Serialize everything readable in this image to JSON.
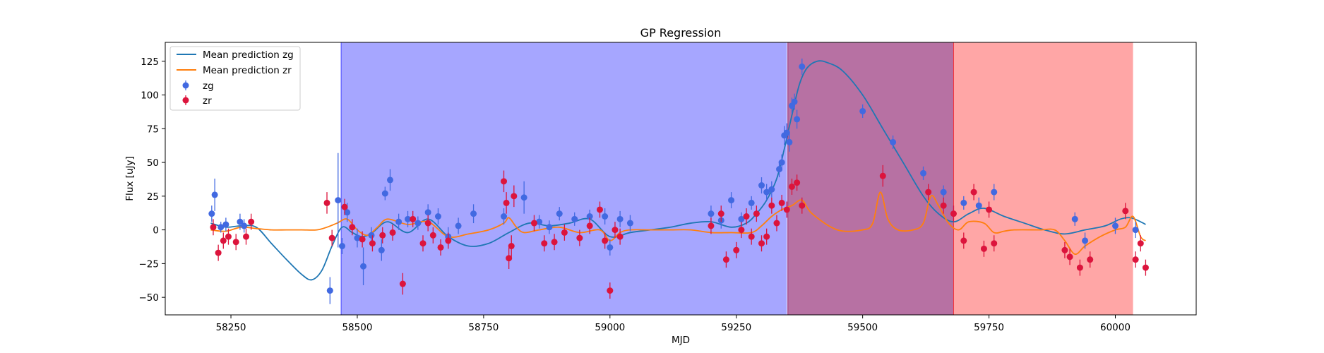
{
  "chart_data": {
    "type": "scatter",
    "title": "GP Regression",
    "xlabel": "MJD",
    "ylabel": "Flux [uJy]",
    "xlim": [
      58120,
      60160
    ],
    "ylim": [
      -63,
      139
    ],
    "xticks": [
      58250,
      58500,
      58750,
      59000,
      59250,
      59500,
      59750,
      60000
    ],
    "yticks": [
      -50,
      -25,
      0,
      25,
      50,
      75,
      100,
      125
    ],
    "grid": false,
    "legend_position": "upper-left",
    "legend": [
      {
        "label": "Mean prediction zg",
        "kind": "line",
        "color": "#1f77b4"
      },
      {
        "label": "Mean prediction zr",
        "kind": "line",
        "color": "#ff7f0e"
      },
      {
        "label": "zg",
        "kind": "marker",
        "color": "#4169e1"
      },
      {
        "label": "zr",
        "kind": "marker",
        "color": "#dc143c"
      }
    ],
    "spans": [
      {
        "x0": 58468,
        "x1": 59350,
        "color": "#0000ff",
        "alpha": 0.35
      },
      {
        "x0": 59352,
        "x1": 59680,
        "color": "#8b1a6b",
        "alpha": 0.62
      },
      {
        "x0": 59680,
        "x1": 60035,
        "color": "#ff0000",
        "alpha": 0.35
      }
    ],
    "series": [
      {
        "name": "Mean prediction zg",
        "kind": "line",
        "color": "#1f77b4",
        "x": [
          58210,
          58240,
          58270,
          58300,
          58330,
          58360,
          58390,
          58410,
          58430,
          58450,
          58470,
          58490,
          58510,
          58530,
          58560,
          58600,
          58640,
          58680,
          58720,
          58760,
          58800,
          58840,
          58880,
          58920,
          58960,
          59000,
          59040,
          59080,
          59120,
          59160,
          59200,
          59240,
          59270,
          59290,
          59310,
          59330,
          59345,
          59360,
          59375,
          59390,
          59410,
          59430,
          59460,
          59500,
          59540,
          59580,
          59620,
          59650,
          59680,
          59710,
          59740,
          59780,
          59820,
          59860,
          59900,
          59940,
          59980,
          60010,
          60030,
          60050,
          60060
        ],
        "y": [
          5,
          2,
          3,
          2,
          -10,
          -22,
          -33,
          -37,
          -30,
          -12,
          2,
          -2,
          -5,
          -2,
          6,
          -2,
          8,
          -5,
          -12,
          -10,
          -2,
          5,
          3,
          5,
          8,
          -5,
          -2,
          0,
          2,
          5,
          6,
          2,
          5,
          12,
          22,
          38,
          60,
          85,
          108,
          120,
          125,
          124,
          118,
          100,
          75,
          50,
          25,
          12,
          6,
          12,
          16,
          10,
          5,
          0,
          -3,
          0,
          3,
          8,
          9,
          6,
          4
        ]
      },
      {
        "name": "Mean prediction zr",
        "kind": "line",
        "color": "#ff7f0e",
        "x": [
          58210,
          58240,
          58270,
          58300,
          58330,
          58360,
          58390,
          58420,
          58440,
          58460,
          58480,
          58500,
          58520,
          58540,
          58560,
          58600,
          58640,
          58680,
          58720,
          58760,
          58790,
          58800,
          58815,
          58830,
          58860,
          58900,
          58940,
          58980,
          59000,
          59020,
          59040,
          59080,
          59120,
          59160,
          59200,
          59240,
          59280,
          59300,
          59320,
          59340,
          59360,
          59380,
          59400,
          59450,
          59500,
          59520,
          59535,
          59550,
          59570,
          59600,
          59620,
          59635,
          59650,
          59670,
          59690,
          59710,
          59740,
          59760,
          59780,
          59800,
          59850,
          59880,
          59900,
          59920,
          59940,
          59970,
          60000,
          60020,
          60035,
          60050,
          60060
        ],
        "y": [
          0,
          -1,
          2,
          1,
          0,
          0,
          0,
          0,
          2,
          5,
          8,
          0,
          -4,
          2,
          8,
          4,
          6,
          -5,
          -3,
          0,
          5,
          9,
          2,
          -2,
          0,
          2,
          -2,
          0,
          -8,
          -2,
          0,
          0,
          0,
          0,
          -2,
          -2,
          -2,
          3,
          10,
          15,
          18,
          22,
          12,
          0,
          0,
          5,
          28,
          8,
          0,
          0,
          5,
          25,
          18,
          5,
          0,
          6,
          5,
          -2,
          -1,
          0,
          0,
          0,
          -8,
          -18,
          -12,
          -5,
          0,
          2,
          10,
          -5,
          -8
        ]
      },
      {
        "name": "zg",
        "kind": "errorbar",
        "color": "#4169e1",
        "x": [
          58212,
          58218,
          58230,
          58240,
          58268,
          58276,
          58446,
          58462,
          58470,
          58480,
          58500,
          58512,
          58528,
          58548,
          58555,
          58565,
          58582,
          58600,
          58620,
          58640,
          58660,
          58680,
          58700,
          58730,
          58790,
          58830,
          58860,
          58880,
          58900,
          58930,
          58960,
          58990,
          59000,
          59020,
          59040,
          59200,
          59220,
          59240,
          59260,
          59280,
          59300,
          59310,
          59320,
          59335,
          59340,
          59345,
          59350,
          59355,
          59360,
          59365,
          59370,
          59380,
          59500,
          59560,
          59620,
          59660,
          59700,
          59730,
          59760,
          59920,
          59940,
          60000,
          60040
        ],
        "y": [
          12,
          26,
          2,
          4,
          6,
          3,
          -45,
          22,
          -12,
          13,
          -6,
          -27,
          -4,
          -15,
          27,
          37,
          6,
          8,
          5,
          13,
          10,
          -5,
          3,
          12,
          10,
          24,
          6,
          2,
          12,
          8,
          10,
          10,
          -13,
          8,
          5,
          12,
          7,
          22,
          8,
          20,
          33,
          28,
          30,
          45,
          50,
          70,
          72,
          65,
          92,
          95,
          82,
          121,
          88,
          65,
          42,
          28,
          20,
          18,
          28,
          8,
          -8,
          3,
          0
        ],
        "err": [
          6,
          12,
          4,
          5,
          6,
          5,
          10,
          35,
          6,
          7,
          7,
          14,
          6,
          8,
          5,
          8,
          6,
          6,
          5,
          6,
          6,
          7,
          6,
          7,
          6,
          12,
          5,
          5,
          5,
          5,
          5,
          6,
          6,
          6,
          6,
          6,
          6,
          6,
          5,
          5,
          6,
          6,
          6,
          6,
          6,
          7,
          7,
          7,
          6,
          6,
          7,
          6,
          5,
          5,
          5,
          5,
          5,
          6,
          6,
          5,
          6,
          6,
          6
        ]
      },
      {
        "name": "zr",
        "kind": "errorbar",
        "color": "#dc143c",
        "x": [
          58215,
          58225,
          58235,
          58245,
          58260,
          58280,
          58290,
          58440,
          58450,
          58475,
          58490,
          58510,
          58530,
          58550,
          58570,
          58590,
          58610,
          58630,
          58640,
          58650,
          58665,
          58680,
          58790,
          58795,
          58800,
          58805,
          58810,
          58850,
          58870,
          58890,
          58910,
          58940,
          58960,
          58980,
          58990,
          59000,
          59010,
          59020,
          59200,
          59220,
          59230,
          59250,
          59260,
          59270,
          59280,
          59290,
          59300,
          59310,
          59320,
          59330,
          59340,
          59350,
          59360,
          59370,
          59380,
          59540,
          59630,
          59660,
          59680,
          59700,
          59720,
          59740,
          59750,
          59760,
          59900,
          59910,
          59930,
          59950,
          60020,
          60040,
          60050,
          60060
        ],
        "y": [
          2,
          -17,
          -8,
          -5,
          -9,
          -5,
          6,
          20,
          -6,
          17,
          2,
          -7,
          -10,
          -4,
          -2,
          -40,
          8,
          -10,
          5,
          -4,
          -13,
          -8,
          36,
          20,
          -21,
          -12,
          25,
          5,
          -10,
          -9,
          -2,
          -6,
          3,
          15,
          -8,
          -45,
          0,
          -5,
          3,
          12,
          -22,
          -15,
          0,
          10,
          -5,
          12,
          -10,
          -5,
          18,
          5,
          20,
          15,
          32,
          35,
          18,
          40,
          28,
          18,
          12,
          -8,
          28,
          -14,
          15,
          -10,
          -15,
          -20,
          -28,
          -22,
          14,
          -22,
          -10,
          -28
        ],
        "err": [
          6,
          6,
          6,
          6,
          6,
          6,
          6,
          8,
          6,
          6,
          6,
          6,
          6,
          6,
          6,
          8,
          6,
          6,
          6,
          6,
          6,
          6,
          8,
          8,
          8,
          8,
          8,
          6,
          6,
          6,
          6,
          6,
          6,
          6,
          6,
          6,
          6,
          6,
          6,
          6,
          6,
          6,
          6,
          6,
          6,
          6,
          6,
          6,
          6,
          6,
          6,
          6,
          6,
          6,
          6,
          8,
          6,
          6,
          6,
          6,
          6,
          6,
          6,
          6,
          6,
          6,
          6,
          6,
          6,
          6,
          6,
          6
        ]
      }
    ]
  }
}
